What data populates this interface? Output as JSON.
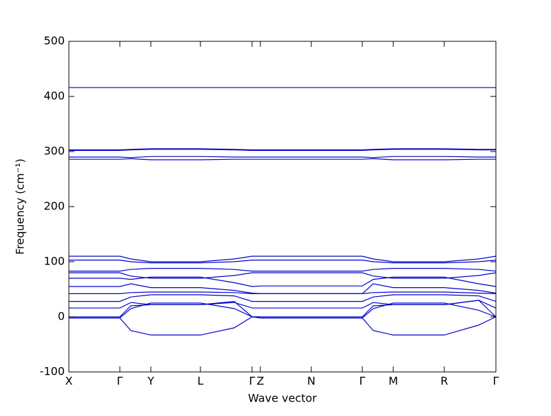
{
  "chart_data": {
    "type": "line",
    "xlabel": "Wave vector",
    "ylabel": "Frequency (cm⁻¹)",
    "color": "#0000cc",
    "x": [
      0,
      74,
      90,
      119,
      191,
      240,
      266,
      278,
      352,
      426,
      442,
      471,
      545,
      595,
      620
    ],
    "xlim": [
      0,
      620
    ],
    "xticks": [
      {
        "value": 0,
        "label": "X"
      },
      {
        "value": 74,
        "label": "Γ"
      },
      {
        "value": 119,
        "label": "Y"
      },
      {
        "value": 191,
        "label": "L"
      },
      {
        "value": 266,
        "label": "Γ"
      },
      {
        "value": 278,
        "label": "Z"
      },
      {
        "value": 352,
        "label": "N"
      },
      {
        "value": 426,
        "label": "Γ"
      },
      {
        "value": 471,
        "label": "M"
      },
      {
        "value": 545,
        "label": "R"
      },
      {
        "value": 620,
        "label": "Γ"
      }
    ],
    "ylim": [
      -100,
      500
    ],
    "yticks": [
      -100,
      0,
      100,
      200,
      300,
      400,
      500
    ],
    "series": [
      {
        "values": [
          -2,
          -2,
          -25,
          -33,
          -33,
          -20,
          0,
          -2,
          -2,
          -2,
          -25,
          -33,
          -33,
          -15,
          0
        ]
      },
      {
        "values": [
          -2,
          -2,
          15,
          25,
          25,
          15,
          0,
          -2,
          -2,
          -2,
          15,
          25,
          25,
          12,
          0
        ]
      },
      {
        "values": [
          0,
          0,
          20,
          22,
          22,
          28,
          0,
          0,
          0,
          0,
          20,
          22,
          22,
          30,
          0
        ]
      },
      {
        "values": [
          16,
          16,
          26,
          22,
          22,
          26,
          16,
          16,
          16,
          16,
          26,
          22,
          22,
          30,
          16
        ]
      },
      {
        "values": [
          28,
          28,
          36,
          40,
          40,
          38,
          28,
          28,
          28,
          28,
          36,
          40,
          40,
          38,
          28
        ]
      },
      {
        "values": [
          42,
          42,
          44,
          45,
          45,
          44,
          42,
          42,
          42,
          42,
          44,
          45,
          45,
          43,
          42
        ]
      },
      {
        "values": [
          55,
          55,
          60,
          53,
          53,
          48,
          43,
          42,
          42,
          42,
          60,
          53,
          53,
          48,
          43
        ]
      },
      {
        "values": [
          70,
          70,
          68,
          72,
          72,
          62,
          55,
          56,
          56,
          56,
          68,
          72,
          72,
          60,
          55
        ]
      },
      {
        "values": [
          80,
          80,
          74,
          70,
          70,
          75,
          80,
          80,
          80,
          80,
          74,
          70,
          70,
          75,
          80
        ]
      },
      {
        "values": [
          83,
          83,
          86,
          88,
          88,
          86,
          83,
          83,
          83,
          83,
          86,
          88,
          88,
          86,
          83
        ]
      },
      {
        "values": [
          103,
          103,
          100,
          98,
          98,
          100,
          103,
          103,
          103,
          103,
          100,
          98,
          98,
          100,
          103
        ]
      },
      {
        "values": [
          110,
          110,
          105,
          100,
          100,
          105,
          110,
          110,
          110,
          110,
          105,
          100,
          100,
          105,
          110
        ]
      },
      {
        "values": [
          286,
          286,
          287,
          285,
          285,
          286,
          286,
          286,
          286,
          286,
          287,
          285,
          285,
          286,
          286
        ]
      },
      {
        "values": [
          290,
          290,
          289,
          291,
          291,
          290,
          290,
          290,
          290,
          290,
          289,
          291,
          291,
          290,
          290
        ]
      },
      {
        "values": [
          302,
          302,
          303,
          304,
          304,
          303,
          302,
          302,
          302,
          302,
          303,
          304,
          304,
          303,
          303
        ]
      },
      {
        "values": [
          303,
          303,
          304,
          305,
          305,
          304,
          303,
          303,
          303,
          303,
          304,
          305,
          305,
          304,
          304
        ]
      },
      {
        "values": [
          416,
          416,
          416,
          416,
          416,
          416,
          416,
          416,
          416,
          416,
          416,
          416,
          416,
          416,
          416
        ]
      }
    ]
  }
}
